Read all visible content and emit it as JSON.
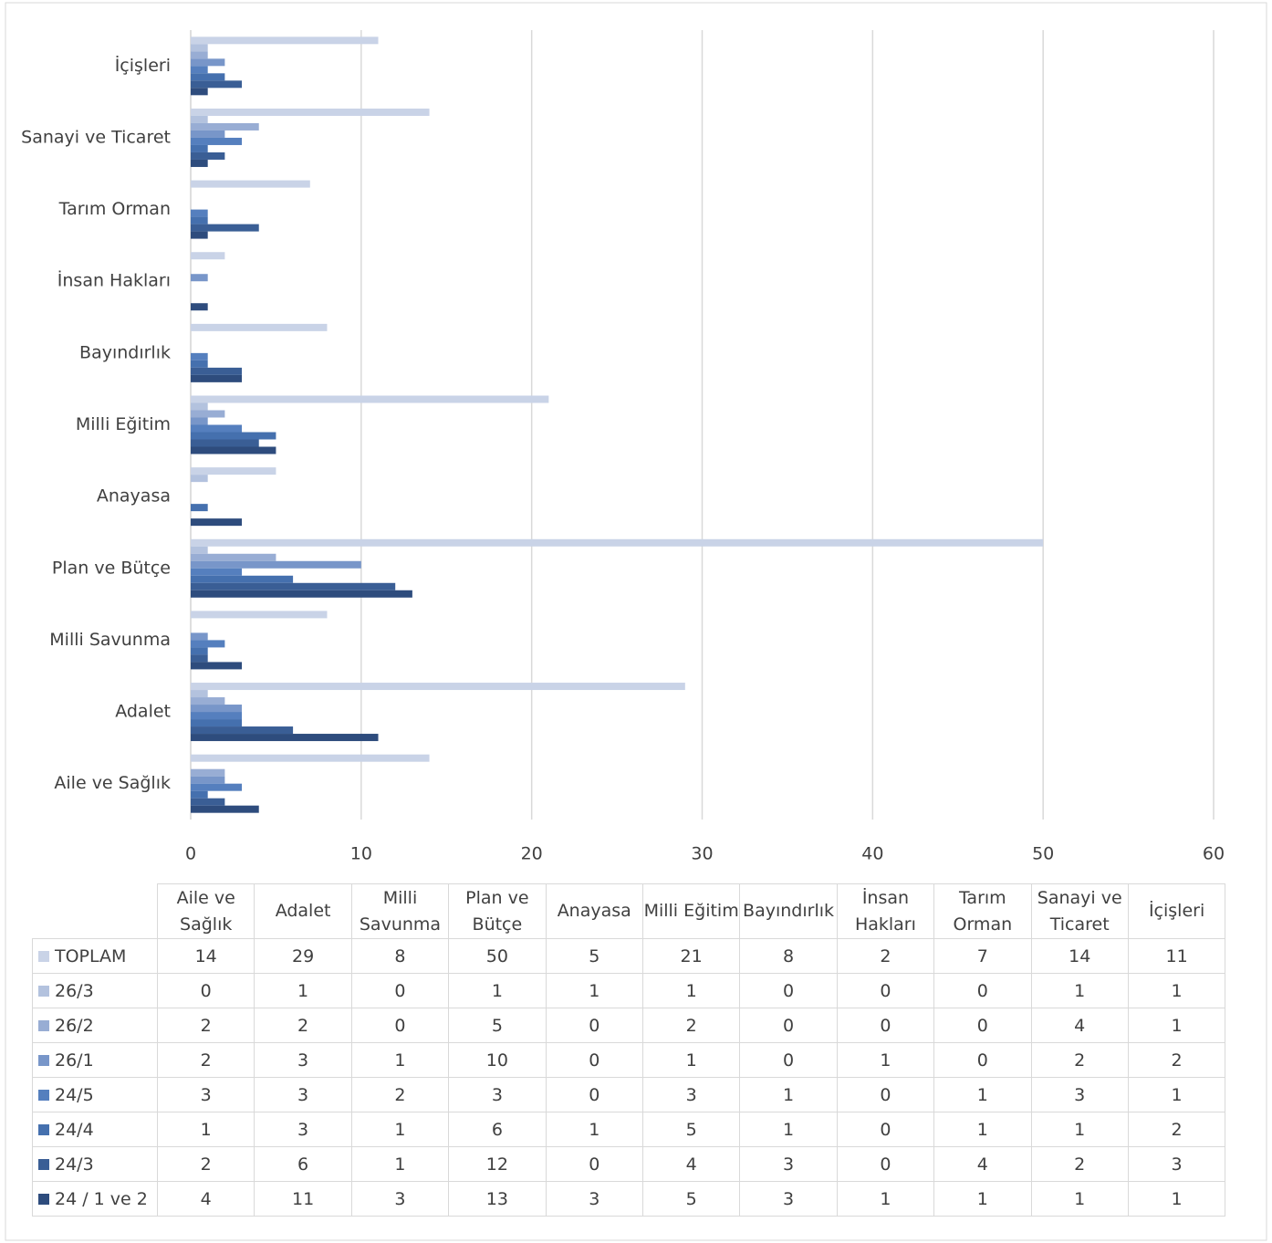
{
  "chart_data": {
    "type": "bar",
    "orientation": "horizontal",
    "categories": [
      "Aile ve Sağlık",
      "Adalet",
      "Milli Savunma",
      "Plan ve Bütçe",
      "Anayasa",
      "Milli Eğitim",
      "Bayındırlık",
      "İnsan Hakları",
      "Tarım Orman",
      "Sanayi ve Ticaret",
      "İçişleri"
    ],
    "series": [
      {
        "name": "TOPLAM",
        "color": "#c9d3e7",
        "values": [
          14,
          29,
          8,
          50,
          5,
          21,
          8,
          2,
          7,
          14,
          11
        ]
      },
      {
        "name": "26/3",
        "color": "#b3c2de",
        "values": [
          0,
          1,
          0,
          1,
          1,
          1,
          0,
          0,
          0,
          1,
          1
        ]
      },
      {
        "name": "26/2",
        "color": "#98add4",
        "values": [
          2,
          2,
          0,
          5,
          0,
          2,
          0,
          0,
          0,
          4,
          1
        ]
      },
      {
        "name": "26/1",
        "color": "#7896c9",
        "values": [
          2,
          3,
          1,
          10,
          0,
          1,
          0,
          1,
          0,
          2,
          2
        ]
      },
      {
        "name": "24/5",
        "color": "#557fbe",
        "values": [
          3,
          3,
          2,
          3,
          0,
          3,
          1,
          0,
          1,
          3,
          1
        ]
      },
      {
        "name": "24/4",
        "color": "#4570ae",
        "values": [
          1,
          3,
          1,
          6,
          1,
          5,
          1,
          0,
          1,
          1,
          2
        ]
      },
      {
        "name": "24/3",
        "color": "#3a5e95",
        "values": [
          2,
          6,
          1,
          12,
          0,
          4,
          3,
          0,
          4,
          2,
          3
        ]
      },
      {
        "name": "24 / 1 ve 2",
        "color": "#2e4c7d",
        "values": [
          4,
          11,
          3,
          13,
          3,
          5,
          3,
          1,
          1,
          1,
          1
        ]
      }
    ],
    "xlim": [
      0,
      60
    ],
    "xticks": [
      0,
      10,
      20,
      30,
      40,
      50,
      60
    ],
    "grid": true,
    "legend": "table"
  }
}
